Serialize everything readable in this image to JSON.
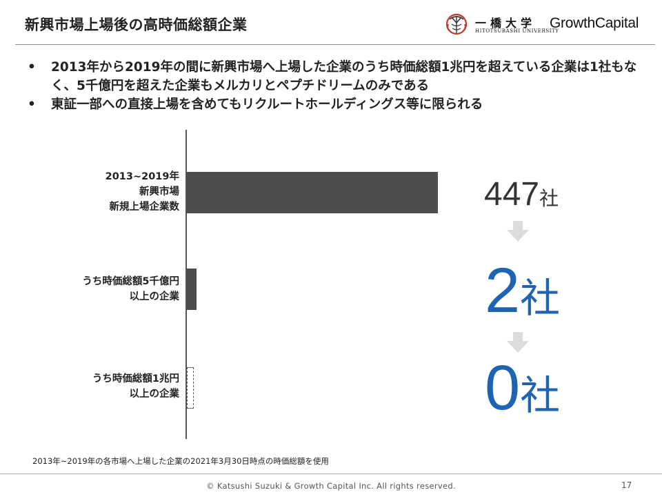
{
  "header": {
    "title": "新興市場上場後の高時価総額企業",
    "logo": {
      "university_name": "一橋大学",
      "university_sub": "HITOTSUBASHI UNIVERSITY",
      "company_name": "GrowthCapital"
    }
  },
  "bullets": [
    "2013年から2019年の間に新興市場へ上場した企業のうち時価総額1兆円を超えている企業は1社もなく、5千億円を超えた企業もメルカリとペプチドリームのみである",
    "東証一部への直接上場を含めてもリクルートホールディングス等に限られる"
  ],
  "bullet_marker": "•",
  "chart_data": {
    "type": "bar",
    "orientation": "horizontal",
    "categories": [
      [
        "2013~2019年",
        "新興市場",
        "新規上場企業数"
      ],
      [
        "うち時価総額5千億円",
        "以上の企業"
      ],
      [
        "うち時価総額1兆円",
        "以上の企業"
      ]
    ],
    "values": [
      447,
      2,
      0
    ],
    "bar_color": "#4d4d4d",
    "value_labels": [
      {
        "number": "447",
        "unit": "社",
        "color": "#333333"
      },
      {
        "number": "2",
        "unit": "社",
        "color": "#1f63b3"
      },
      {
        "number": "0",
        "unit": "社",
        "color": "#1f63b3"
      }
    ],
    "arrow_color": "#dcdcdc",
    "xlim": [
      0,
      447
    ]
  },
  "footnote": "2013年~2019年の各市場へ上場した企業の2021年3月30日時点の時価総額を使用",
  "footer": {
    "copyright": "© Katsushi Suzuki & Growth Capital Inc. All rights reserved.",
    "page_number": "17"
  }
}
